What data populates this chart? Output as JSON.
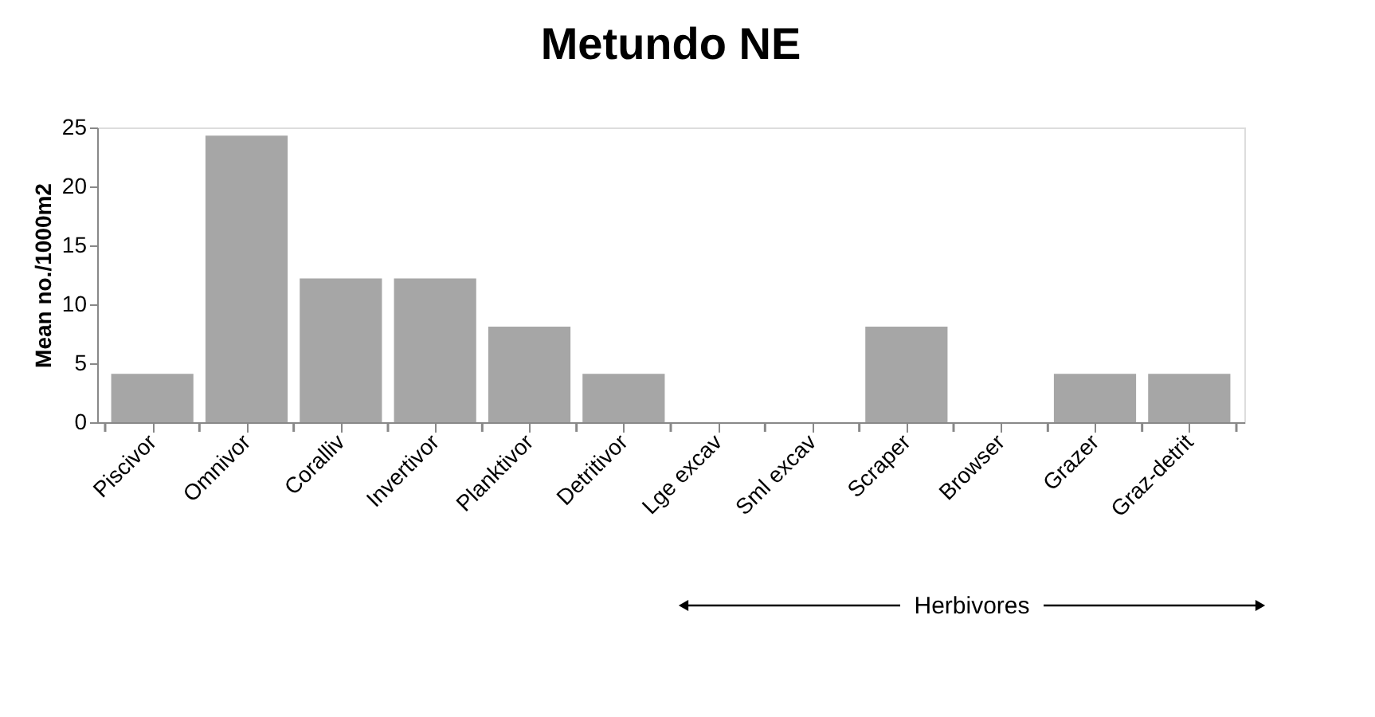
{
  "chart_data": {
    "type": "bar",
    "title": "Metundo NE",
    "ylabel": "Mean no./1000m2",
    "categories": [
      "Piscivor",
      "Omnivor",
      "Coralliv",
      "Invertivor",
      "Planktivor",
      "Detritivor",
      "Lge excav",
      "Sml excav",
      "Scraper",
      "Browser",
      "Grazer",
      "Graz-detrit"
    ],
    "values": [
      4.1,
      24.3,
      12.2,
      12.2,
      8.1,
      4.1,
      0,
      0,
      8.1,
      0,
      4.1,
      4.1
    ],
    "color": "#a6a6a6",
    "ylim": [
      0,
      25
    ],
    "yticks": [
      0,
      5,
      10,
      15,
      20,
      25
    ],
    "grid": false,
    "annotations": [
      "Herbivores"
    ]
  }
}
